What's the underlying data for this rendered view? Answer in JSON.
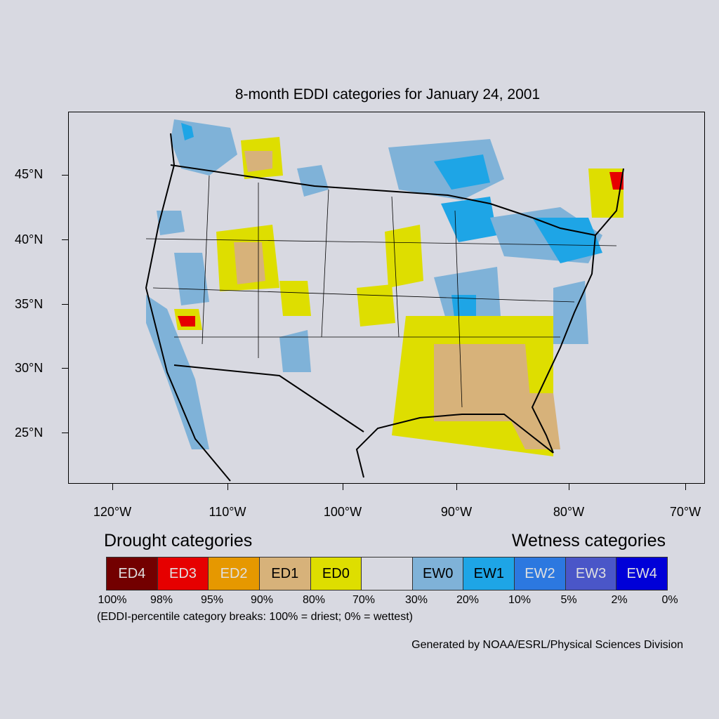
{
  "title": "8-month EDDI categories for January 24, 2001",
  "map": {
    "lat_labels": [
      "45°N",
      "40°N",
      "35°N",
      "30°N",
      "25°N"
    ],
    "lon_labels": [
      "120°W",
      "110°W",
      "100°W",
      "90°W",
      "80°W",
      "70°W"
    ],
    "land_color": "#d8d9e1",
    "boundary_color": "#000000"
  },
  "legend": {
    "drought_label": "Drought categories",
    "wetness_label": "Wetness categories",
    "categories": [
      {
        "label": "ED4",
        "color": "#730000",
        "text_color": "#e0e0e0"
      },
      {
        "label": "ED3",
        "color": "#e60000",
        "text_color": "#e0e0e0"
      },
      {
        "label": "ED2",
        "color": "#e69800",
        "text_color": "#e0e0e0"
      },
      {
        "label": "ED1",
        "color": "#d7b27a",
        "text_color": "#000000"
      },
      {
        "label": "ED0",
        "color": "#dede00",
        "text_color": "#000000"
      },
      {
        "label": "",
        "color": "#d8d9e1",
        "text_color": "#000000"
      },
      {
        "label": "EW0",
        "color": "#7fb2d8",
        "text_color": "#000000"
      },
      {
        "label": "EW1",
        "color": "#1ea5e6",
        "text_color": "#000000"
      },
      {
        "label": "EW2",
        "color": "#2c78e0",
        "text_color": "#e0e0e0"
      },
      {
        "label": "EW3",
        "color": "#4a56c8",
        "text_color": "#e0e0e0"
      },
      {
        "label": "EW4",
        "color": "#0000d8",
        "text_color": "#e0e0e0"
      }
    ],
    "percentiles": [
      "100%",
      "98%",
      "95%",
      "90%",
      "80%",
      "70%",
      "30%",
      "20%",
      "10%",
      "5%",
      "2%",
      "0%"
    ],
    "note": "(EDDI-percentile category breaks: 100% = driest; 0% = wettest)"
  },
  "credit": "Generated by NOAA/ESRL/Physical Sciences Division"
}
